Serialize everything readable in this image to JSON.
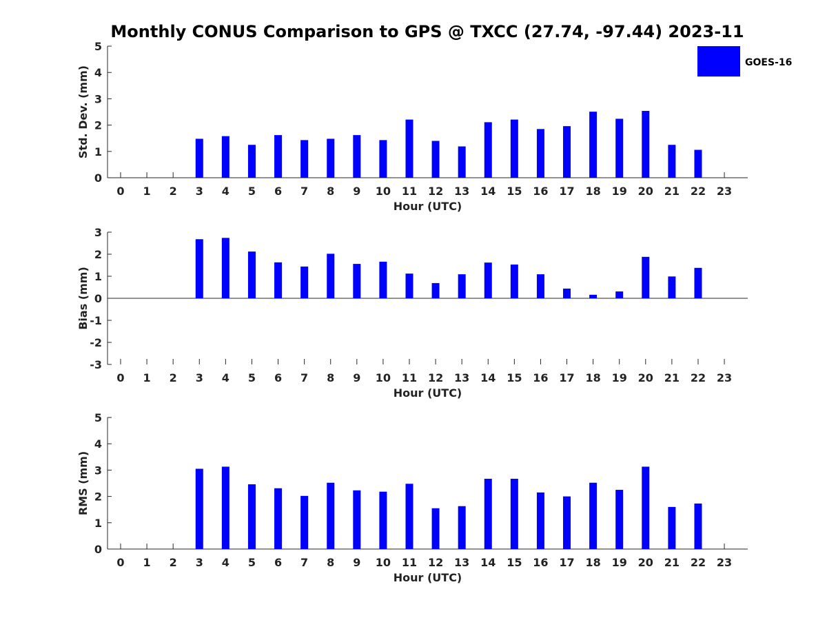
{
  "chart_data": {
    "title": "Monthly CONUS Comparison to GPS @ TXCC (27.74, -97.44) 2023-11",
    "legend": {
      "placement": "top-right",
      "entries": [
        {
          "name": "GOES-16",
          "color": "#0000ff"
        }
      ]
    },
    "colors": {
      "bar": "#0000ff",
      "axis": "#262626",
      "text": "#222222"
    },
    "panels": [
      {
        "type": "bar",
        "ylabel": "Std. Dev. (mm)",
        "xlabel": "Hour (UTC)",
        "ylim": [
          0,
          5
        ],
        "yticks": [
          0,
          1,
          2,
          3,
          4,
          5
        ],
        "categories": [
          "0",
          "1",
          "2",
          "3",
          "4",
          "5",
          "6",
          "7",
          "8",
          "9",
          "10",
          "11",
          "12",
          "13",
          "14",
          "15",
          "16",
          "17",
          "18",
          "19",
          "20",
          "21",
          "22",
          "23"
        ],
        "series": [
          {
            "name": "GOES-16",
            "values": [
              null,
              null,
              null,
              1.48,
              1.58,
              1.25,
              1.62,
              1.43,
              1.48,
              1.62,
              1.43,
              2.21,
              1.4,
              1.19,
              2.11,
              2.21,
              1.85,
              1.96,
              2.51,
              2.24,
              2.54,
              1.25,
              1.06,
              null
            ]
          }
        ]
      },
      {
        "type": "bar",
        "ylabel": "Bias (mm)",
        "xlabel": "Hour (UTC)",
        "ylim": [
          -3,
          3
        ],
        "yticks": [
          -3,
          -2,
          -1,
          0,
          1,
          2,
          3
        ],
        "categories": [
          "0",
          "1",
          "2",
          "3",
          "4",
          "5",
          "6",
          "7",
          "8",
          "9",
          "10",
          "11",
          "12",
          "13",
          "14",
          "15",
          "16",
          "17",
          "18",
          "19",
          "20",
          "21",
          "22",
          "23"
        ],
        "series": [
          {
            "name": "GOES-16",
            "values": [
              null,
              null,
              null,
              2.68,
              2.74,
              2.12,
              1.63,
              1.44,
              2.02,
              1.56,
              1.66,
              1.12,
              0.69,
              1.09,
              1.62,
              1.53,
              1.09,
              0.44,
              0.16,
              0.31,
              1.88,
              0.99,
              1.38,
              null
            ]
          }
        ]
      },
      {
        "type": "bar",
        "ylabel": "RMS (mm)",
        "xlabel": "Hour (UTC)",
        "ylim": [
          0,
          5
        ],
        "yticks": [
          0,
          1,
          2,
          3,
          4,
          5
        ],
        "categories": [
          "0",
          "1",
          "2",
          "3",
          "4",
          "5",
          "6",
          "7",
          "8",
          "9",
          "10",
          "11",
          "12",
          "13",
          "14",
          "15",
          "16",
          "17",
          "18",
          "19",
          "20",
          "21",
          "22",
          "23"
        ],
        "series": [
          {
            "name": "GOES-16",
            "values": [
              null,
              null,
              null,
              3.05,
              3.13,
              2.46,
              2.31,
              2.02,
              2.52,
              2.23,
              2.18,
              2.48,
              1.55,
              1.63,
              2.67,
              2.67,
              2.15,
              2.0,
              2.52,
              2.25,
              3.13,
              1.6,
              1.73,
              null
            ]
          }
        ]
      }
    ]
  }
}
